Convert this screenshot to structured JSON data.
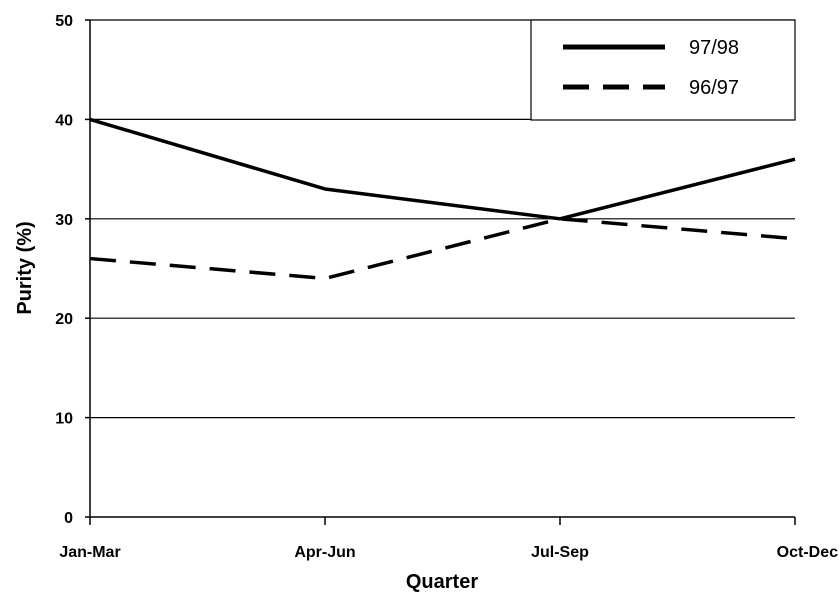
{
  "chart_data": {
    "type": "line",
    "categories": [
      "Jan-Mar",
      "Apr-Jun",
      "Jul-Sep",
      "Oct-Dec"
    ],
    "series": [
      {
        "name": "97/98",
        "values": [
          40,
          33,
          30,
          36
        ],
        "style": "solid",
        "color": "#000000"
      },
      {
        "name": "96/97",
        "values": [
          26,
          24,
          30,
          28
        ],
        "style": "dashed",
        "color": "#000000"
      }
    ],
    "xlabel": "Quarter",
    "ylabel": "Purity (%)",
    "ylim": [
      0,
      50
    ],
    "yticks": [
      "0",
      "10",
      "20",
      "30",
      "40",
      "50"
    ],
    "grid": true,
    "legend_position": "top-right"
  }
}
